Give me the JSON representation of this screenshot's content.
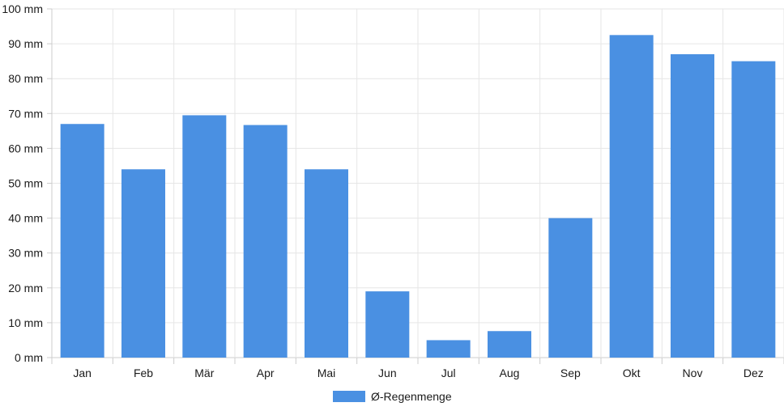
{
  "chart_data": {
    "type": "bar",
    "categories": [
      "Jan",
      "Feb",
      "Mär",
      "Apr",
      "Mai",
      "Jun",
      "Jul",
      "Aug",
      "Sep",
      "Okt",
      "Nov",
      "Dez"
    ],
    "series": [
      {
        "name": "Ø-Regenmenge",
        "color": "#4a90e2",
        "values": [
          67,
          54,
          69.5,
          66.7,
          54,
          19,
          5,
          7.6,
          40,
          92.5,
          87,
          85
        ]
      }
    ],
    "y_ticks": [
      "0 mm",
      "10 mm",
      "20 mm",
      "30 mm",
      "40 mm",
      "50 mm",
      "60 mm",
      "70 mm",
      "80 mm",
      "90 mm",
      "100 mm"
    ],
    "ylim": [
      0,
      100
    ],
    "y_unit": "mm",
    "grid": true,
    "legend_position": "bottom-center"
  }
}
